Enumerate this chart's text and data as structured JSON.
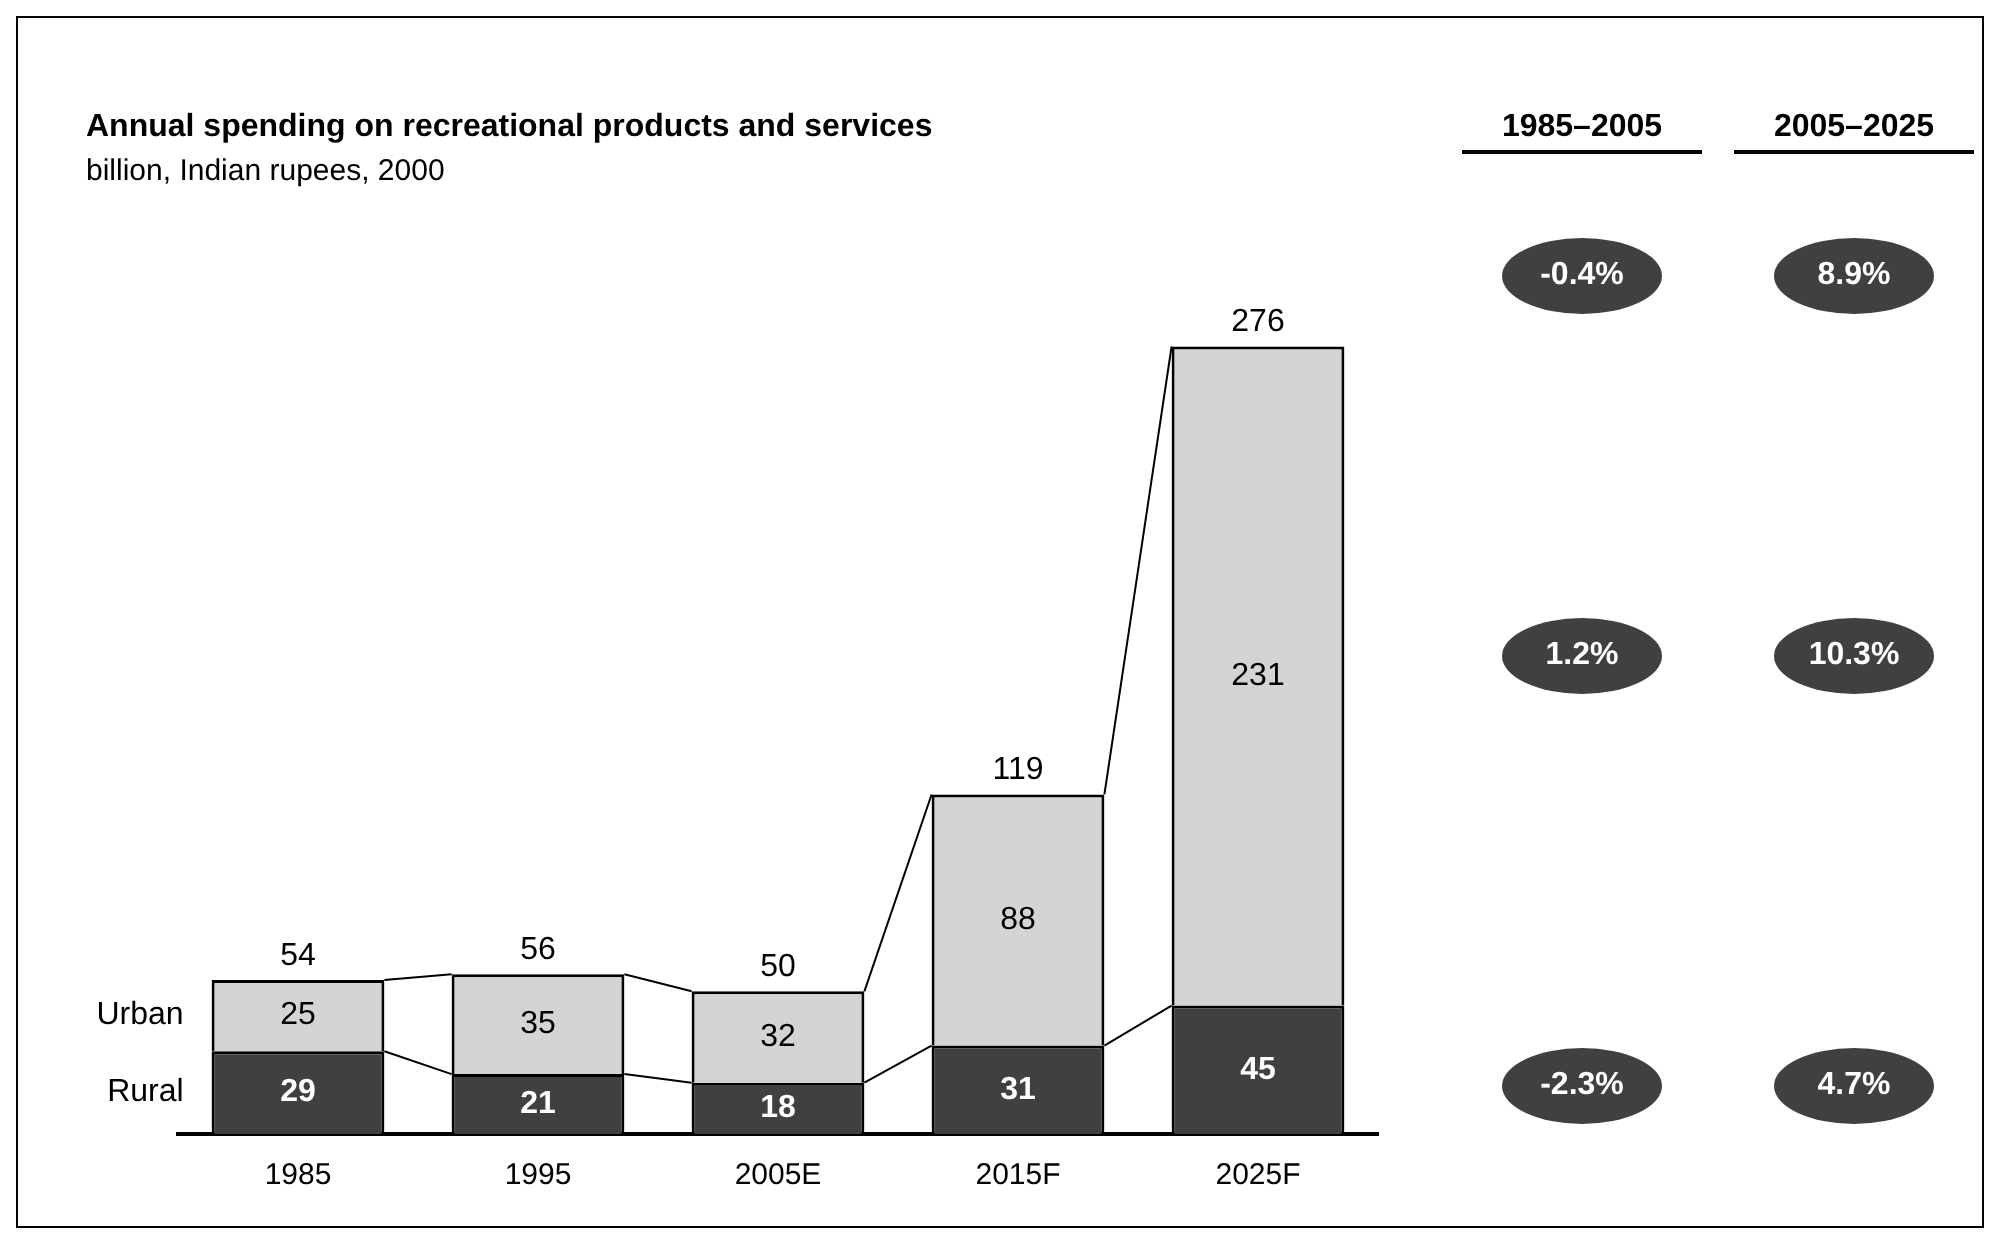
{
  "chart_data": {
    "type": "bar",
    "title": "Annual spending on recreational products and services",
    "subtitle": "billion, Indian rupees, 2000",
    "categories": [
      "1985",
      "1995",
      "2005E",
      "2015F",
      "2025F"
    ],
    "stacked": true,
    "data_labels": true,
    "legend": false,
    "grid": false,
    "tick_labels": "x",
    "series": [
      {
        "name": "Rural",
        "color": "#404040",
        "values": [
          29,
          21,
          18,
          31,
          45
        ]
      },
      {
        "name": "Urban",
        "color": "#d4d4d4",
        "values": [
          25,
          35,
          32,
          88,
          231
        ]
      }
    ],
    "totals": [
      "54",
      "56",
      "50",
      "119",
      "276"
    ],
    "annotations": [
      "1985–2005",
      "2005–2025",
      "-0.4%",
      "8.9%",
      "1.2%",
      "10.3%",
      "-2.3%",
      "4.7%"
    ]
  }
}
